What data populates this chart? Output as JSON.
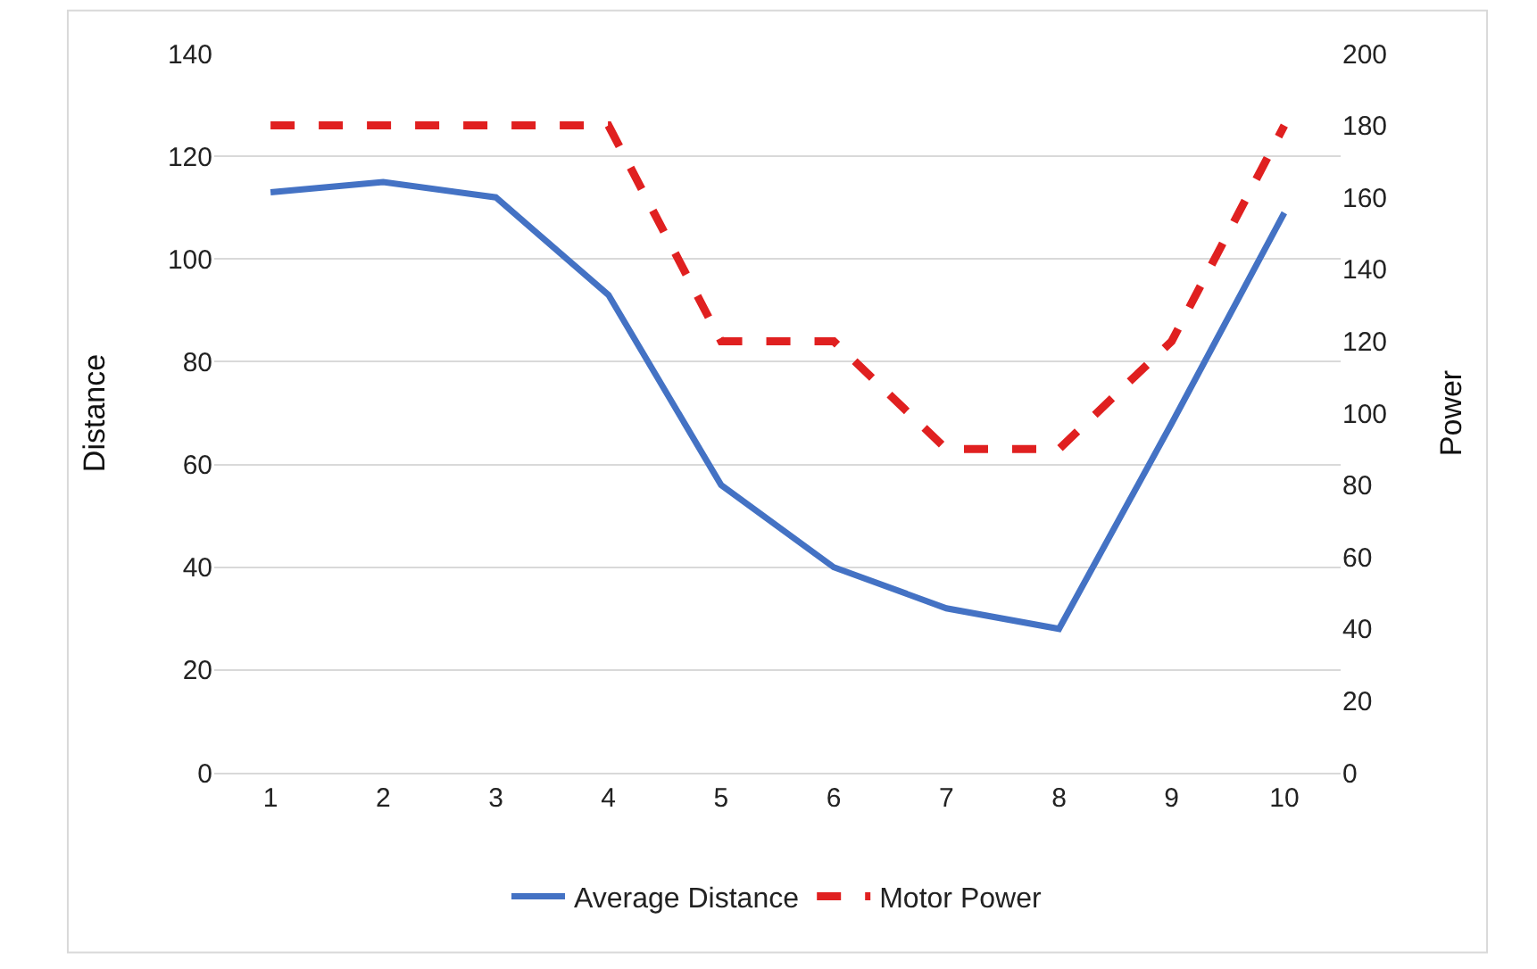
{
  "chart_data": {
    "type": "line",
    "ylabel": "Distance",
    "y2label": "Power",
    "categories": [
      "1",
      "2",
      "3",
      "4",
      "5",
      "6",
      "7",
      "8",
      "9",
      "10"
    ],
    "series": [
      {
        "name": "Average Distance",
        "color": "#4472c4",
        "line_style": "solid",
        "values": [
          113,
          115,
          112,
          93,
          56,
          40,
          32,
          28,
          68,
          109
        ]
      },
      {
        "name": "Motor Power",
        "color": "#e02020",
        "line_style": "dashed",
        "axis": "y2",
        "values": [
          180,
          180,
          180,
          180,
          120,
          120,
          90,
          90,
          120,
          180
        ]
      }
    ],
    "ylim": [
      0,
      140
    ],
    "yticks": [
      0,
      20,
      40,
      60,
      80,
      100,
      120,
      140
    ],
    "y2lim": [
      0,
      200
    ],
    "y2ticks": [
      0,
      20,
      40,
      60,
      80,
      100,
      120,
      140,
      160,
      180,
      200
    ],
    "grid": "y",
    "legend": "bottom",
    "marker": "none"
  }
}
